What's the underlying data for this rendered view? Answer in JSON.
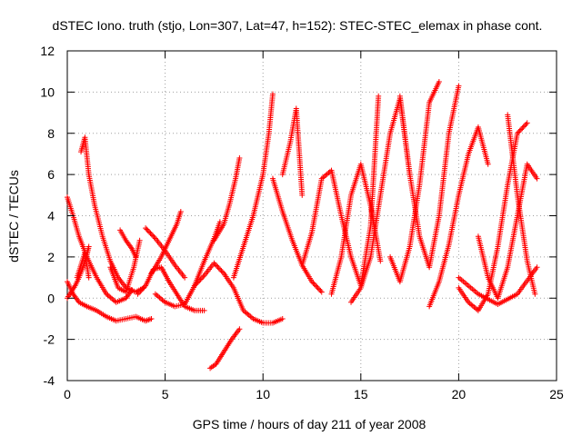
{
  "chart_data": {
    "type": "scatter",
    "title": "dSTEC Iono. truth (stjo, Lon=307, Lat=47, h=152): STEC-STEC_elemax in phase cont.",
    "xlabel": "GPS time / hours of day 211 of year 2008",
    "ylabel": "dSTEC  / TECUs",
    "xlim": [
      0,
      25
    ],
    "ylim": [
      -4,
      12
    ],
    "x_ticks": [
      "0",
      "5",
      "10",
      "15",
      "20",
      "25"
    ],
    "y_ticks": [
      "-4",
      "-2",
      "0",
      "2",
      "4",
      "6",
      "8",
      "10",
      "12"
    ],
    "grid": true,
    "marker": "+",
    "color": "#ff0000",
    "series": [
      {
        "x": [
          0,
          0.3,
          0.6,
          1.0,
          1.5,
          2.0,
          2.5,
          3.0,
          3.5,
          4.0,
          4.3
        ],
        "y": [
          0.8,
          0.2,
          -0.2,
          -0.4,
          -0.6,
          -0.9,
          -1.1,
          -1.0,
          -0.9,
          -1.1,
          -1.0
        ]
      },
      {
        "x": [
          0,
          0.3,
          0.6,
          1.0,
          1.5,
          2.0,
          2.5,
          3.0,
          3.3
        ],
        "y": [
          4.9,
          4.0,
          3.0,
          2.0,
          1.0,
          0.2,
          -0.2,
          0.0,
          0.4
        ]
      },
      {
        "x": [
          0,
          0.2,
          0.4,
          0.6,
          0.8,
          1.0,
          1.1
        ],
        "y": [
          0.0,
          0.3,
          0.6,
          1.0,
          1.5,
          2.1,
          2.5
        ]
      },
      {
        "x": [
          0.7,
          0.9,
          1.1,
          1.4,
          1.8,
          2.2,
          2.6,
          3.0,
          3.5,
          3.9
        ],
        "y": [
          7.1,
          7.8,
          6.0,
          4.5,
          3.0,
          1.8,
          1.0,
          0.5,
          0.3,
          0.5
        ]
      },
      {
        "x": [
          0.5,
          0.7,
          0.9,
          1.1
        ],
        "y": [
          1.0,
          1.6,
          2.2,
          1.0
        ]
      },
      {
        "x": [
          2.7,
          3.0,
          3.3,
          3.5
        ],
        "y": [
          3.3,
          2.8,
          2.4,
          2.0
        ]
      },
      {
        "x": [
          2.2,
          2.6,
          3.0,
          3.4,
          3.7
        ],
        "y": [
          1.5,
          0.5,
          0.3,
          1.5,
          2.8
        ]
      },
      {
        "x": [
          3.6,
          4.0,
          4.4,
          4.8,
          5.2,
          5.6,
          6.0,
          6.5,
          7.0
        ],
        "y": [
          0.2,
          0.6,
          1.4,
          1.5,
          0.8,
          0.2,
          -0.4,
          -0.6,
          -0.6
        ]
      },
      {
        "x": [
          4.3,
          4.8,
          5.2,
          5.6,
          5.8
        ],
        "y": [
          1.2,
          2.0,
          2.8,
          3.6,
          4.2
        ]
      },
      {
        "x": [
          4.0,
          4.5,
          5.0,
          5.5,
          6.0
        ],
        "y": [
          3.4,
          2.9,
          2.3,
          1.6,
          1.0
        ]
      },
      {
        "x": [
          4.5,
          5.0,
          5.5,
          6.0,
          6.5,
          7.0,
          7.5,
          7.8
        ],
        "y": [
          0.2,
          -0.2,
          -0.4,
          -0.3,
          0.6,
          1.8,
          2.9,
          3.7
        ]
      },
      {
        "x": [
          6.5,
          7.0,
          7.5,
          8.0,
          8.5,
          9.0,
          9.5,
          10.0,
          10.5,
          11.0
        ],
        "y": [
          0.6,
          1.1,
          1.7,
          1.2,
          0.5,
          -0.6,
          -1.0,
          -1.2,
          -1.2,
          -1.0
        ]
      },
      {
        "x": [
          7.3,
          7.6,
          8.0,
          8.4,
          8.8
        ],
        "y": [
          -3.4,
          -3.2,
          -2.6,
          -2.0,
          -1.5
        ]
      },
      {
        "x": [
          8.5,
          9.0,
          9.5,
          10.0,
          10.3,
          10.5
        ],
        "y": [
          1.0,
          2.5,
          4.0,
          6.0,
          8.0,
          9.9
        ]
      },
      {
        "x": [
          7.5,
          8.0,
          8.3,
          8.6,
          8.8
        ],
        "y": [
          2.8,
          3.6,
          4.6,
          5.8,
          6.8
        ]
      },
      {
        "x": [
          10.5,
          11.0,
          11.5,
          12.0,
          12.5,
          13.0
        ],
        "y": [
          5.8,
          4.2,
          2.8,
          1.6,
          0.8,
          0.3
        ]
      },
      {
        "x": [
          11.0,
          11.4,
          11.7,
          12.0
        ],
        "y": [
          6.0,
          7.6,
          9.2,
          5.0
        ]
      },
      {
        "x": [
          12.0,
          12.5,
          13.0,
          13.5,
          14.0,
          14.5,
          15.0,
          15.5,
          15.9
        ],
        "y": [
          1.6,
          3.2,
          5.8,
          6.2,
          4.0,
          2.0,
          0.6,
          3.5,
          9.8
        ]
      },
      {
        "x": [
          13.5,
          14.0,
          14.5,
          15.0,
          15.5,
          16.0
        ],
        "y": [
          0.2,
          2.0,
          5.0,
          6.5,
          4.5,
          1.8
        ]
      },
      {
        "x": [
          14.5,
          15.0,
          15.5,
          16.0,
          16.5,
          17.0,
          17.5
        ],
        "y": [
          -0.2,
          0.5,
          2.0,
          5.0,
          8.0,
          9.7,
          6.0
        ]
      },
      {
        "x": [
          16.5,
          17.0,
          17.5,
          18.0,
          18.5,
          19.0
        ],
        "y": [
          2.0,
          0.8,
          2.5,
          5.5,
          9.5,
          10.5
        ]
      },
      {
        "x": [
          17.0,
          17.5,
          18.0,
          18.5,
          19.0,
          19.5,
          20.0
        ],
        "y": [
          9.8,
          6.0,
          3.0,
          1.5,
          4.0,
          8.0,
          10.3
        ]
      },
      {
        "x": [
          18.5,
          19.0,
          19.5,
          20.0,
          20.5,
          21.0,
          21.5
        ],
        "y": [
          -0.4,
          0.8,
          2.6,
          5.0,
          7.0,
          8.3,
          6.5
        ]
      },
      {
        "x": [
          20.0,
          20.5,
          21.0,
          21.5,
          22.0,
          22.5,
          23.0,
          23.5
        ],
        "y": [
          0.5,
          -0.2,
          -0.6,
          0.2,
          2.5,
          5.5,
          8.0,
          8.5
        ]
      },
      {
        "x": [
          21.0,
          21.5,
          22.0,
          22.5,
          23.0,
          23.5,
          24.0
        ],
        "y": [
          3.0,
          1.0,
          0.0,
          1.5,
          4.0,
          6.5,
          5.8
        ]
      },
      {
        "x": [
          22.5,
          23.0,
          23.5,
          23.9
        ],
        "y": [
          8.9,
          5.0,
          1.8,
          0.2
        ]
      },
      {
        "x": [
          20.0,
          21.0,
          22.0,
          23.0,
          24.0
        ],
        "y": [
          1.0,
          0.2,
          -0.3,
          0.2,
          1.5
        ]
      }
    ]
  }
}
